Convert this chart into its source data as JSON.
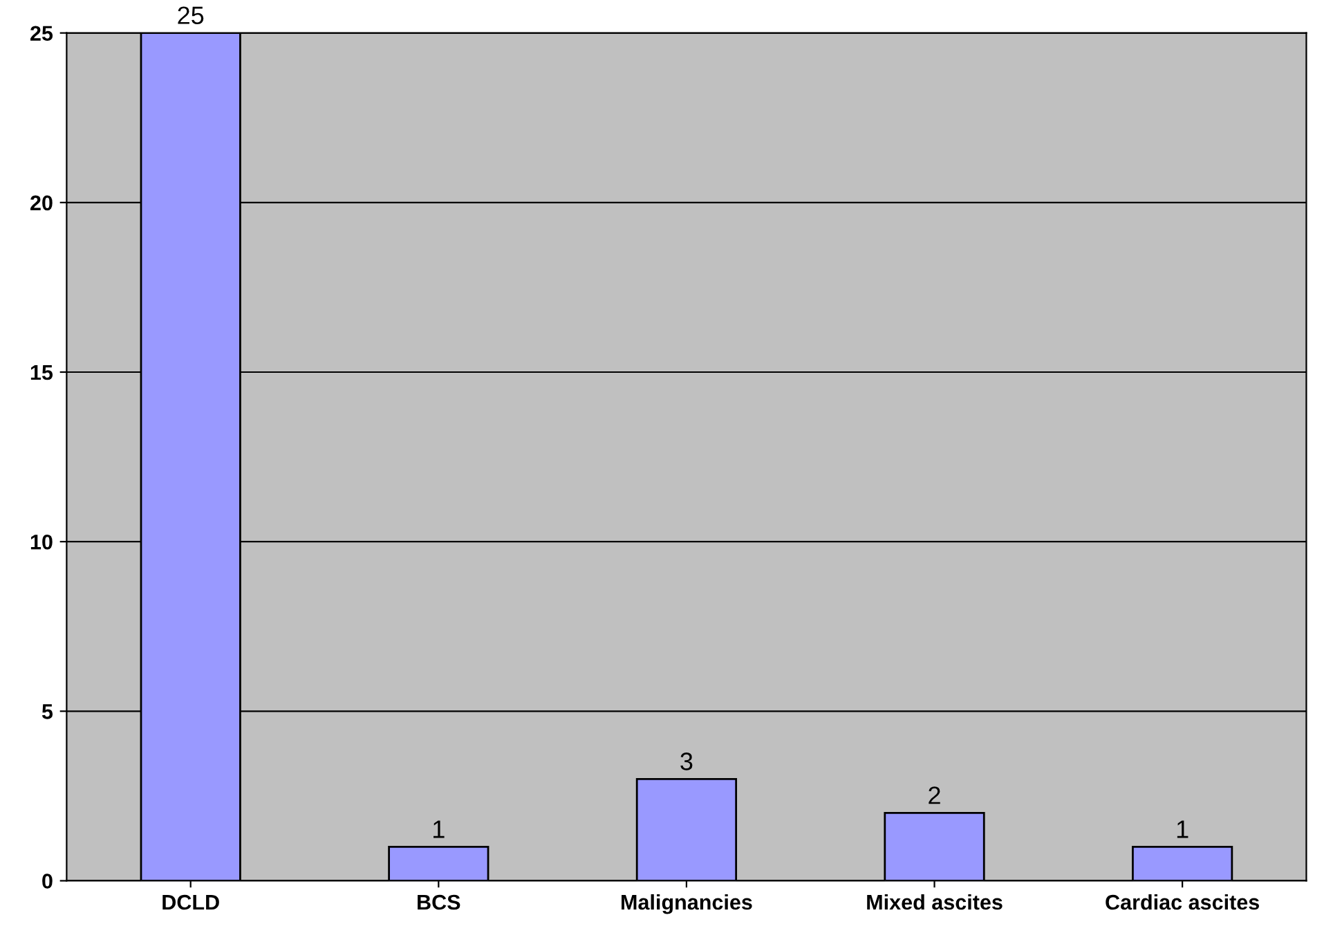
{
  "chart_data": {
    "type": "bar",
    "categories": [
      "DCLD",
      "BCS",
      "Malignancies",
      "Mixed ascites",
      "Cardiac ascites"
    ],
    "values": [
      25,
      1,
      3,
      2,
      1
    ],
    "color": "#9999ff",
    "ylim": [
      0,
      25
    ],
    "yticks": [
      0,
      5,
      10,
      15,
      20,
      25
    ],
    "grid": "y",
    "data_labels": true
  }
}
